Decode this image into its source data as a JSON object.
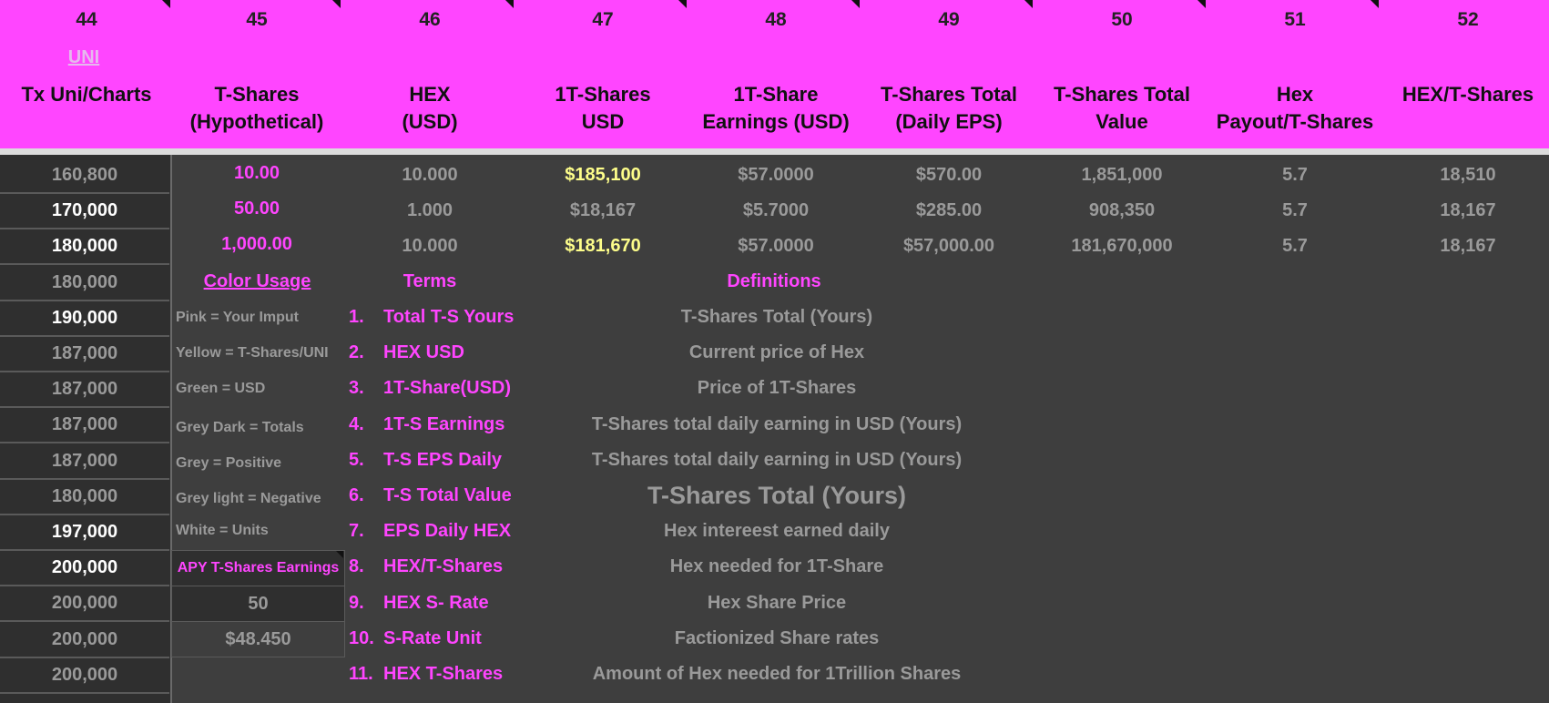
{
  "header": {
    "column_numbers": [
      "44",
      "45",
      "46",
      "47",
      "48",
      "49",
      "50",
      "51",
      "52"
    ],
    "uni_link": "UNI",
    "labels": [
      [
        "Tx Uni/Charts"
      ],
      [
        "T-Shares",
        "(Hypothetical)"
      ],
      [
        "HEX",
        "(USD)"
      ],
      [
        "1T-Shares",
        "USD"
      ],
      [
        "1T-Share",
        "Earnings (USD)"
      ],
      [
        "T-Shares Total",
        "(Daily EPS)"
      ],
      [
        "T-Shares Total",
        "Value"
      ],
      [
        "Hex",
        "Payout/T-Shares"
      ],
      [
        "HEX/T-Shares"
      ]
    ]
  },
  "tx_column": {
    "rows": [
      "160,800",
      "170,000",
      "180,000",
      "180,000",
      "190,000",
      "187,000",
      "187,000",
      "187,000",
      "187,000",
      "180,000",
      "197,000",
      "200,000",
      "200,000",
      "200,000",
      "200,000"
    ],
    "row_colors": [
      "grey",
      "white",
      "white",
      "grey",
      "white",
      "grey",
      "grey",
      "grey",
      "grey",
      "grey",
      "white",
      "white",
      "grey",
      "grey",
      "grey"
    ]
  },
  "data_rows": [
    [
      "10.00",
      "10.000",
      "$185,100",
      "$57.0000",
      "$570.00",
      "1,851,000",
      "5.7",
      "18,510"
    ],
    [
      "50.00",
      "1.000",
      "$18,167",
      "$5.7000",
      "$285.00",
      "908,350",
      "5.7",
      "18,167"
    ],
    [
      "1,000.00",
      "10.000",
      "$181,670",
      "$57.0000",
      "$57,000.00",
      "181,670,000",
      "5.7",
      "18,167"
    ]
  ],
  "section_titles": {
    "color_usage": "Color Usage",
    "terms": "Terms",
    "definitions": "Definitions"
  },
  "legend": [
    "Pink = Your Imput",
    "Yellow = T-Shares/UNI",
    "Green = USD",
    "Grey Dark = Totals",
    "Grey = Positive",
    "Grey light = Negative",
    "White = Units"
  ],
  "apy": {
    "label": "APY T-Shares Earnings",
    "value": "50",
    "amount": "$48.450"
  },
  "terms": [
    {
      "num": "1.",
      "term": "Total T-S Yours",
      "definition": "T-Shares Total (Yours)"
    },
    {
      "num": "2.",
      "term": "HEX USD",
      "definition": "Current price of Hex"
    },
    {
      "num": "3.",
      "term": "1T-Share(USD)",
      "definition": "Price of 1T-Shares"
    },
    {
      "num": "4.",
      "term": "1T-S Earnings",
      "definition": "T-Shares total daily earning in USD (Yours)"
    },
    {
      "num": "5.",
      "term": "T-S EPS Daily",
      "definition": "T-Shares total daily earning in USD (Yours)"
    },
    {
      "num": "6.",
      "term": "T-S Total Value",
      "definition": "T-Shares Total (Yours)"
    },
    {
      "num": "7.",
      "term": "EPS Daily HEX",
      "definition": "Hex intereest earned daily"
    },
    {
      "num": "8.",
      "term": "HEX/T-Shares",
      "definition": "Hex needed for 1T-Share"
    },
    {
      "num": "9.",
      "term": "HEX S- Rate",
      "definition": "Hex Share Price"
    },
    {
      "num": "10.",
      "term": "S-Rate Unit",
      "definition": "Factionized  Share rates"
    },
    {
      "num": "11.",
      "term": "HEX T-Shares",
      "definition": "Amount of Hex needed for 1Trillion Shares"
    }
  ],
  "colors": {
    "header_bg": "#ff45ff",
    "sheet_bg": "#3e3e3e",
    "pink_text": "#ff45ff",
    "yellow_text": "#fdfd8a",
    "grey_text": "#9a9a9a"
  }
}
